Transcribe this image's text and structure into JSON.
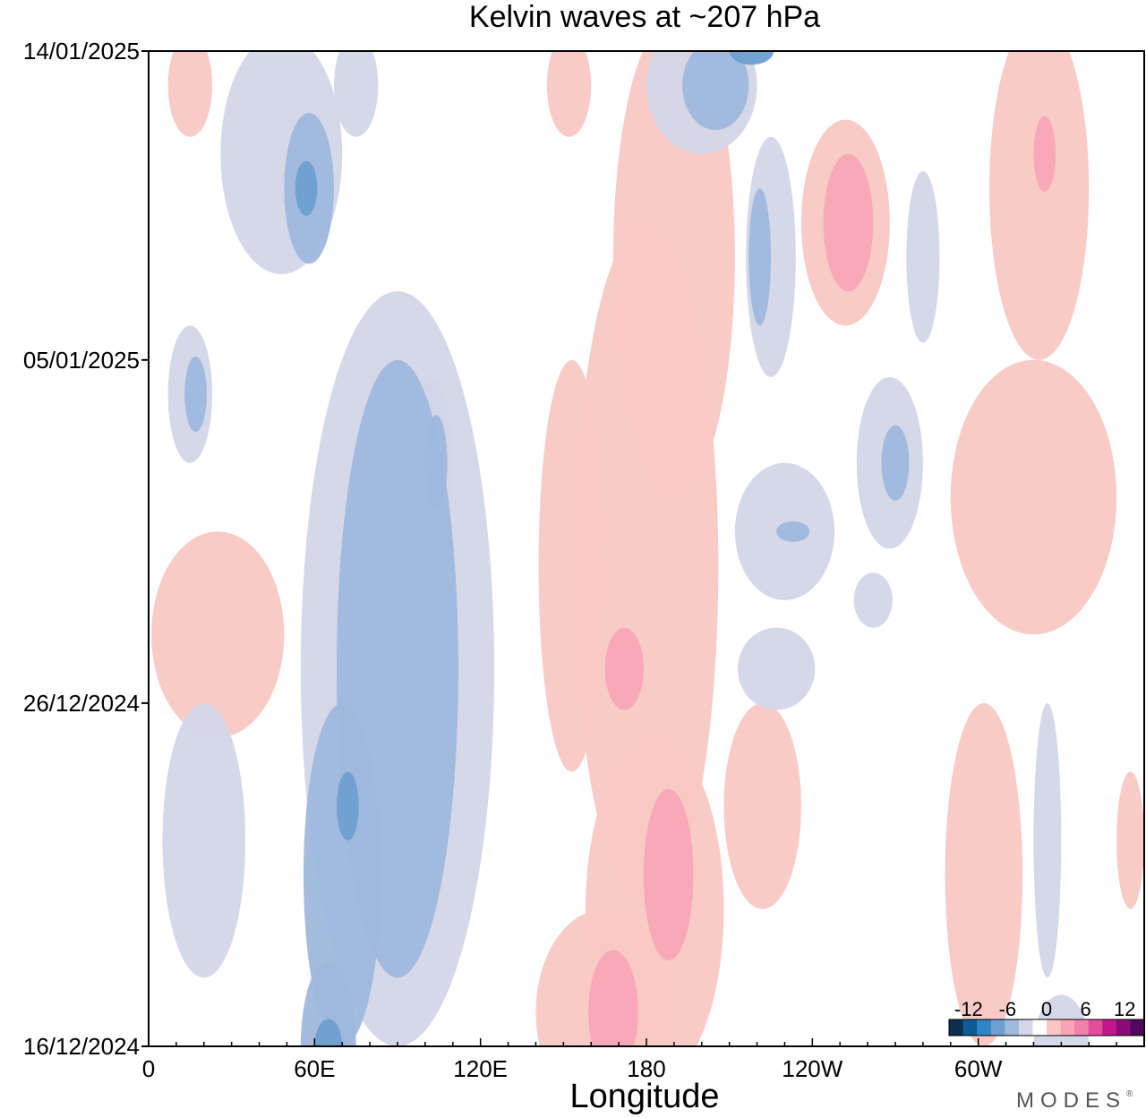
{
  "chart_data": {
    "type": "heatmap",
    "title": "Kelvin waves at ~207 hPa",
    "xlabel": "Longitude",
    "ylabel": "",
    "x_ticks": [
      {
        "lon": 0,
        "label": "0"
      },
      {
        "lon": 60,
        "label": "60E"
      },
      {
        "lon": 120,
        "label": "120E"
      },
      {
        "lon": 180,
        "label": "180"
      },
      {
        "lon": 240,
        "label": "120W"
      },
      {
        "lon": 300,
        "label": "60W"
      }
    ],
    "xlim": [
      0,
      360
    ],
    "y_ticks": [
      {
        "date": "16/12/2024",
        "label": "16/12/2024"
      },
      {
        "date": "26/12/2024",
        "label": "26/12/2024"
      },
      {
        "date": "05/01/2025",
        "label": "05/01/2025"
      },
      {
        "date": "14/01/2025",
        "label": "14/01/2025"
      }
    ],
    "ylim": [
      "16/12/2024",
      "14/01/2025"
    ],
    "colorbar": {
      "levels": [
        -14,
        -12,
        -10,
        -8,
        -6,
        -4,
        -2,
        2,
        4,
        6,
        8,
        10,
        12,
        14
      ],
      "colors": [
        "#0c2f52",
        "#0d5d92",
        "#2f86c4",
        "#6f9fd0",
        "#9fb8dc",
        "#d3d6e8",
        "#ffffff",
        "#f9c8c4",
        "#f8a6b6",
        "#f081a8",
        "#e34d99",
        "#c2178a",
        "#8a0c79",
        "#4f0a5e"
      ],
      "labels": [
        {
          "value": -12,
          "text": "-12"
        },
        {
          "value": -6,
          "text": "-6"
        },
        {
          "value": 0,
          "text": "0"
        },
        {
          "value": 6,
          "text": "6"
        },
        {
          "value": 12,
          "text": "12"
        }
      ]
    },
    "features": [
      {
        "kind": "neg",
        "level": -4,
        "lon": 48,
        "date": "11/01/2025",
        "dlon": 22,
        "ddays": 3.5
      },
      {
        "kind": "neg",
        "level": -6,
        "lon": 58,
        "date": "10/01/2025",
        "dlon": 9,
        "ddays": 2.2
      },
      {
        "kind": "neg",
        "level": -8,
        "lon": 57,
        "date": "10/01/2025",
        "dlon": 4,
        "ddays": 0.8
      },
      {
        "kind": "neg",
        "level": -4,
        "lon": 75,
        "date": "13/01/2025",
        "dlon": 8,
        "ddays": 1.5
      },
      {
        "kind": "neg",
        "level": -4,
        "lon": 200,
        "date": "13/01/2025",
        "dlon": 20,
        "ddays": 2.0
      },
      {
        "kind": "neg",
        "level": -6,
        "lon": 205,
        "date": "13/01/2025",
        "dlon": 12,
        "ddays": 1.3
      },
      {
        "kind": "neg",
        "level": -8,
        "lon": 218,
        "date": "14/01/2025",
        "dlon": 8,
        "ddays": 0.4
      },
      {
        "kind": "neg",
        "level": -4,
        "lon": 225,
        "date": "08/01/2025",
        "dlon": 9,
        "ddays": 3.5
      },
      {
        "kind": "neg",
        "level": -6,
        "lon": 221,
        "date": "08/01/2025",
        "dlon": 4,
        "ddays": 2.0
      },
      {
        "kind": "neg",
        "level": -4,
        "lon": 280,
        "date": "08/01/2025",
        "dlon": 6,
        "ddays": 2.5
      },
      {
        "kind": "neg",
        "level": -4,
        "lon": 15,
        "date": "04/01/2025",
        "dlon": 8,
        "ddays": 2.0
      },
      {
        "kind": "neg",
        "level": -6,
        "lon": 17,
        "date": "04/01/2025",
        "dlon": 4,
        "ddays": 1.1
      },
      {
        "kind": "neg",
        "level": -4,
        "lon": 102,
        "date": "02/01/2025",
        "dlon": 8,
        "ddays": 2.5
      },
      {
        "kind": "neg",
        "level": -6,
        "lon": 104,
        "date": "02/01/2025",
        "dlon": 4,
        "ddays": 1.4
      },
      {
        "kind": "neg",
        "level": -4,
        "lon": 268,
        "date": "02/01/2025",
        "dlon": 12,
        "ddays": 2.5
      },
      {
        "kind": "neg",
        "level": -6,
        "lon": 270,
        "date": "02/01/2025",
        "dlon": 5,
        "ddays": 1.1
      },
      {
        "kind": "neg",
        "level": -4,
        "lon": 230,
        "date": "31/12/2024",
        "dlon": 18,
        "ddays": 2.0
      },
      {
        "kind": "neg",
        "level": -6,
        "lon": 233,
        "date": "31/12/2024",
        "dlon": 6,
        "ddays": 0.3
      },
      {
        "kind": "neg",
        "level": -4,
        "lon": 262,
        "date": "29/12/2024",
        "dlon": 7,
        "ddays": 0.8
      },
      {
        "kind": "neg",
        "level": -4,
        "lon": 227,
        "date": "27/12/2024",
        "dlon": 14,
        "ddays": 1.2
      },
      {
        "kind": "neg",
        "level": -4,
        "lon": 90,
        "date": "27/12/2024",
        "dlon": 35,
        "ddays": 11
      },
      {
        "kind": "neg",
        "level": -6,
        "lon": 90,
        "date": "27/12/2024",
        "dlon": 22,
        "ddays": 9
      },
      {
        "kind": "neg",
        "level": -4,
        "lon": 20,
        "date": "22/12/2024",
        "dlon": 15,
        "ddays": 4
      },
      {
        "kind": "neg",
        "level": -6,
        "lon": 70,
        "date": "21/12/2024",
        "dlon": 14,
        "ddays": 5
      },
      {
        "kind": "neg",
        "level": -8,
        "lon": 72,
        "date": "23/12/2024",
        "dlon": 4,
        "ddays": 1.0
      },
      {
        "kind": "neg",
        "level": -6,
        "lon": 65,
        "date": "16/12/2024",
        "dlon": 10,
        "ddays": 2.5
      },
      {
        "kind": "neg",
        "level": -8,
        "lon": 65,
        "date": "16/12/2024",
        "dlon": 5,
        "ddays": 0.8
      },
      {
        "kind": "neg",
        "level": -4,
        "lon": 330,
        "date": "16/12/2024",
        "dlon": 10,
        "ddays": 1.5
      },
      {
        "kind": "neg",
        "level": -4,
        "lon": 325,
        "date": "22/12/2024",
        "dlon": 5,
        "ddays": 4
      },
      {
        "kind": "pos",
        "level": 2,
        "lon": 152,
        "date": "13/01/2025",
        "dlon": 8,
        "ddays": 1.5
      },
      {
        "kind": "pos",
        "level": 2,
        "lon": 190,
        "date": "08/01/2025",
        "dlon": 22,
        "ddays": 7
      },
      {
        "kind": "pos",
        "level": 2,
        "lon": 180,
        "date": "30/12/2024",
        "dlon": 26,
        "ddays": 10
      },
      {
        "kind": "pos",
        "level": 4,
        "lon": 172,
        "date": "27/12/2024",
        "dlon": 7,
        "ddays": 1.2
      },
      {
        "kind": "pos",
        "level": 2,
        "lon": 183,
        "date": "20/12/2024",
        "dlon": 25,
        "ddays": 5
      },
      {
        "kind": "pos",
        "level": 4,
        "lon": 188,
        "date": "21/12/2024",
        "dlon": 9,
        "ddays": 2.5
      },
      {
        "kind": "pos",
        "level": 2,
        "lon": 165,
        "date": "17/12/2024",
        "dlon": 25,
        "ddays": 3
      },
      {
        "kind": "pos",
        "level": 4,
        "lon": 168,
        "date": "17/12/2024",
        "dlon": 9,
        "ddays": 1.8
      },
      {
        "kind": "pos",
        "level": 2,
        "lon": 252,
        "date": "09/01/2025",
        "dlon": 16,
        "ddays": 3
      },
      {
        "kind": "pos",
        "level": 4,
        "lon": 253,
        "date": "09/01/2025",
        "dlon": 9,
        "ddays": 2
      },
      {
        "kind": "pos",
        "level": 2,
        "lon": 322,
        "date": "10/01/2025",
        "dlon": 18,
        "ddays": 5
      },
      {
        "kind": "pos",
        "level": 4,
        "lon": 324,
        "date": "11/01/2025",
        "dlon": 4,
        "ddays": 1.1
      },
      {
        "kind": "pos",
        "level": 2,
        "lon": 15,
        "date": "13/01/2025",
        "dlon": 8,
        "ddays": 1.5
      },
      {
        "kind": "pos",
        "level": 2,
        "lon": 320,
        "date": "01/01/2025",
        "dlon": 30,
        "ddays": 4
      },
      {
        "kind": "pos",
        "level": 2,
        "lon": 25,
        "date": "28/12/2024",
        "dlon": 24,
        "ddays": 3
      },
      {
        "kind": "pos",
        "level": 2,
        "lon": 153,
        "date": "30/12/2024",
        "dlon": 12,
        "ddays": 6
      },
      {
        "kind": "pos",
        "level": 2,
        "lon": 222,
        "date": "23/12/2024",
        "dlon": 14,
        "ddays": 3
      },
      {
        "kind": "pos",
        "level": 2,
        "lon": 302,
        "date": "21/12/2024",
        "dlon": 14,
        "ddays": 5
      },
      {
        "kind": "pos",
        "level": 2,
        "lon": 355,
        "date": "22/12/2024",
        "dlon": 5,
        "ddays": 2
      }
    ]
  },
  "branding": {
    "text": "MODES",
    "mark": "®"
  }
}
